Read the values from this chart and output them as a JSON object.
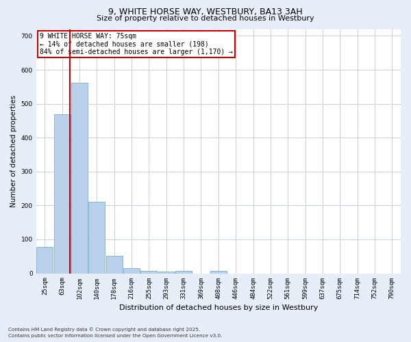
{
  "title1": "9, WHITE HORSE WAY, WESTBURY, BA13 3AH",
  "title2": "Size of property relative to detached houses in Westbury",
  "xlabel": "Distribution of detached houses by size in Westbury",
  "ylabel": "Number of detached properties",
  "categories": [
    "25sqm",
    "63sqm",
    "102sqm",
    "140sqm",
    "178sqm",
    "216sqm",
    "255sqm",
    "293sqm",
    "331sqm",
    "369sqm",
    "408sqm",
    "446sqm",
    "484sqm",
    "522sqm",
    "561sqm",
    "599sqm",
    "637sqm",
    "675sqm",
    "714sqm",
    "752sqm",
    "790sqm"
  ],
  "values": [
    78,
    468,
    562,
    210,
    52,
    15,
    8,
    5,
    8,
    0,
    8,
    0,
    0,
    0,
    0,
    0,
    0,
    0,
    0,
    0,
    0
  ],
  "bar_color": "#b8d0ea",
  "bar_edge_color": "#7aafd4",
  "red_line_x": 1.45,
  "annotation_text": "9 WHITE HORSE WAY: 75sqm\n← 14% of detached houses are smaller (198)\n84% of semi-detached houses are larger (1,170) →",
  "annotation_box_facecolor": "#ffffff",
  "annotation_box_edgecolor": "#cc0000",
  "ylim": [
    0,
    720
  ],
  "yticks": [
    0,
    100,
    200,
    300,
    400,
    500,
    600,
    700
  ],
  "footer1": "Contains HM Land Registry data © Crown copyright and database right 2025.",
  "footer2": "Contains public sector information licensed under the Open Government Licence v3.0.",
  "fig_facecolor": "#e8eef8",
  "plot_facecolor": "#ffffff",
  "grid_color": "#c5cfe0"
}
